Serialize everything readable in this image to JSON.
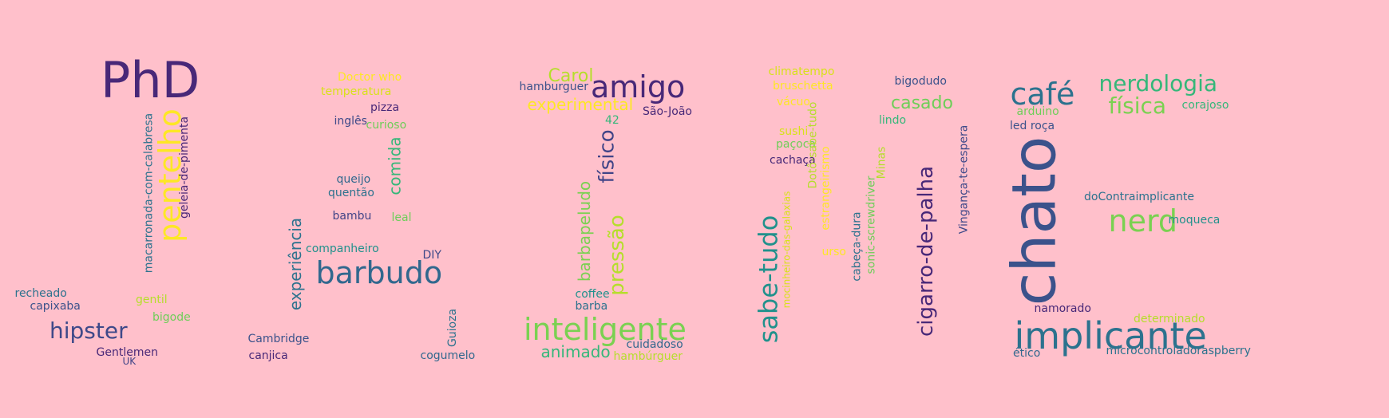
{
  "words": [
    {
      "text": "PhD",
      "color": "#482878"
    },
    {
      "text": "pentelho",
      "color": "#fde725"
    },
    {
      "text": "macarronada-com-calabresa",
      "color": "#2c728e"
    },
    {
      "text": "geleia-de-pimenta",
      "color": "#482878"
    },
    {
      "text": "recheado",
      "color": "#2c728e"
    },
    {
      "text": "capixaba",
      "color": "#3b528b"
    },
    {
      "text": "gentil",
      "color": "#b5de2b"
    },
    {
      "text": "bigode",
      "color": "#6ece58"
    },
    {
      "text": "hipster",
      "color": "#3e4989"
    },
    {
      "text": "Gentlemen",
      "color": "#482878"
    },
    {
      "text": "UK",
      "color": "#414487"
    },
    {
      "text": "Doctor who",
      "color": "#fde725"
    },
    {
      "text": "temperatura",
      "color": "#d8e219"
    },
    {
      "text": "pizza",
      "color": "#482878"
    },
    {
      "text": "inglês",
      "color": "#3e4989"
    },
    {
      "text": "curioso",
      "color": "#6ece58"
    },
    {
      "text": "comida",
      "color": "#35b779"
    },
    {
      "text": "queijo",
      "color": "#31688e"
    },
    {
      "text": "quentão",
      "color": "#2c728e"
    },
    {
      "text": "bambu",
      "color": "#414487"
    },
    {
      "text": "leal",
      "color": "#6ece58"
    },
    {
      "text": "experiência",
      "color": "#2c728e"
    },
    {
      "text": "companheiro",
      "color": "#21918c"
    },
    {
      "text": "DIY",
      "color": "#3e4989"
    },
    {
      "text": "barbudo",
      "color": "#31688e"
    },
    {
      "text": "Guioza",
      "color": "#2c728e"
    },
    {
      "text": "Cambridge",
      "color": "#3b528b"
    },
    {
      "text": "canjica",
      "color": "#482878"
    },
    {
      "text": "cogumelo",
      "color": "#31688e"
    },
    {
      "text": "Carol",
      "color": "#b5de2b"
    },
    {
      "text": "hamburguer",
      "color": "#3b528b"
    },
    {
      "text": "amigo",
      "color": "#482878"
    },
    {
      "text": "experimental",
      "color": "#fde725"
    },
    {
      "text": "São-João",
      "color": "#482878"
    },
    {
      "text": "42",
      "color": "#35b779"
    },
    {
      "text": "físico",
      "color": "#414487"
    },
    {
      "text": "barbapeludo",
      "color": "#7ad151"
    },
    {
      "text": "pressão",
      "color": "#b5de2b"
    },
    {
      "text": "coffee",
      "color": "#21918c"
    },
    {
      "text": "barba",
      "color": "#2c728e"
    },
    {
      "text": "inteligente",
      "color": "#7ad151"
    },
    {
      "text": "animado",
      "color": "#35b779"
    },
    {
      "text": "cuidadoso",
      "color": "#31688e"
    },
    {
      "text": "hambúrguer",
      "color": "#b5de2b"
    },
    {
      "text": "climatempo",
      "color": "#d8e219"
    },
    {
      "text": "bruschetta",
      "color": "#fde725"
    },
    {
      "text": "vácuo",
      "color": "#fde725"
    },
    {
      "text": "sushi",
      "color": "#d8e219"
    },
    {
      "text": "paçoca",
      "color": "#6ece58"
    },
    {
      "text": "cachaça",
      "color": "#482878"
    },
    {
      "text": "Dotô-sabe-tudo",
      "color": "#b5de2b"
    },
    {
      "text": "estrangeirismo",
      "color": "#fde725"
    },
    {
      "text": "sabe-tudo",
      "color": "#21918c"
    },
    {
      "text": "mocinheiro-das-galaxias",
      "color": "#d8e219"
    },
    {
      "text": "urso",
      "color": "#fde725"
    },
    {
      "text": "Minas",
      "color": "#b5de2b"
    },
    {
      "text": "sonic-screwdriver",
      "color": "#6ece58"
    },
    {
      "text": "cabeça-dura",
      "color": "#2c728e"
    },
    {
      "text": "bigodudo",
      "color": "#3b528b"
    },
    {
      "text": "casado",
      "color": "#6ece58"
    },
    {
      "text": "lindo",
      "color": "#35b779"
    },
    {
      "text": "cigarro-de-palha",
      "color": "#482878"
    },
    {
      "text": "Vingança-te-espera",
      "color": "#3e4989"
    },
    {
      "text": "café",
      "color": "#2c728e"
    },
    {
      "text": "nerdologia",
      "color": "#35b779"
    },
    {
      "text": "física",
      "color": "#7ad151"
    },
    {
      "text": "arduino",
      "color": "#6ece58"
    },
    {
      "text": "corajoso",
      "color": "#35b779"
    },
    {
      "text": "led roça",
      "color": "#3b528b"
    },
    {
      "text": "chato",
      "color": "#3b528b"
    },
    {
      "text": "doContraimplicante",
      "color": "#2c728e"
    },
    {
      "text": "nerd",
      "color": "#7ad151"
    },
    {
      "text": "moqueca",
      "color": "#21918c"
    },
    {
      "text": "namorado",
      "color": "#482878"
    },
    {
      "text": "determinado",
      "color": "#b5de2b"
    },
    {
      "text": "implicante",
      "color": "#2c728e"
    },
    {
      "text": "ético",
      "color": "#31688e"
    },
    {
      "text": "microcontroladoraspberry",
      "color": "#2c728e"
    }
  ]
}
